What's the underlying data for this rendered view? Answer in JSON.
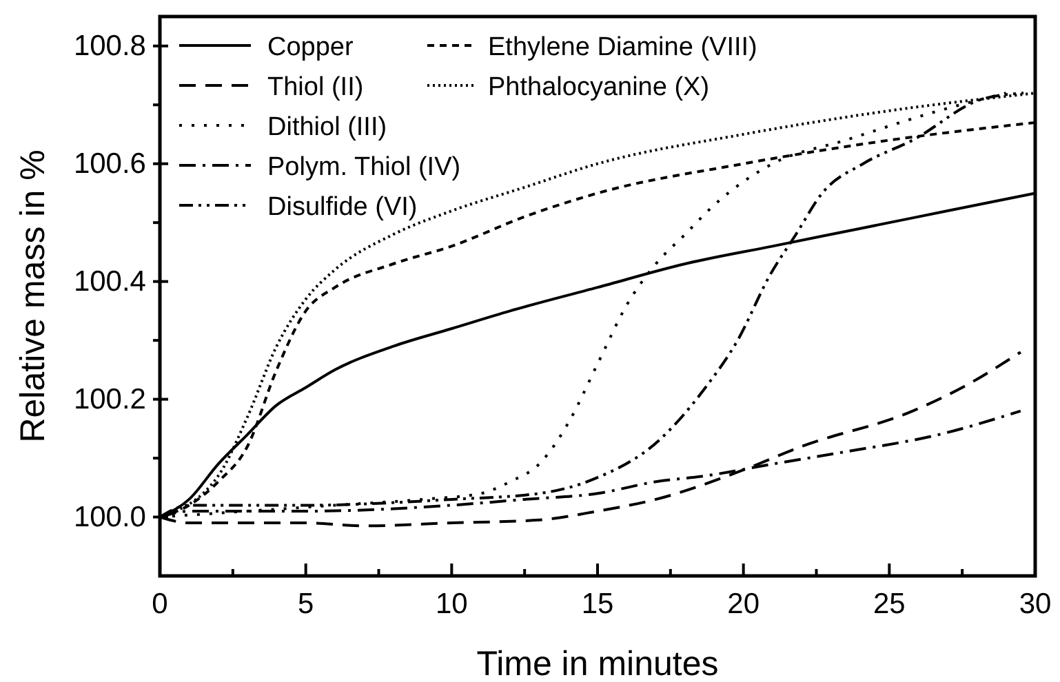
{
  "chart_data": {
    "type": "line",
    "xlabel": "Time in minutes",
    "ylabel": "Relative mass in %",
    "xlim": [
      0,
      30
    ],
    "ylim": [
      99.9,
      100.85
    ],
    "xticks": [
      0,
      {
        "value": 2.5,
        "label": null
      },
      5,
      {
        "value": 7.5,
        "label": null
      },
      10,
      {
        "value": 12.5,
        "label": null
      },
      15,
      {
        "value": 17.5,
        "label": null
      },
      20,
      {
        "value": 22.5,
        "label": null
      },
      25,
      {
        "value": 27.5,
        "label": null
      },
      30
    ],
    "yticks": [
      {
        "value": 100.0,
        "label": "100.0"
      },
      {
        "value": 100.1,
        "label": null
      },
      100.2,
      {
        "value": 100.3,
        "label": null
      },
      100.4,
      {
        "value": 100.5,
        "label": null
      },
      100.6,
      {
        "value": 100.7,
        "label": null
      },
      100.8
    ],
    "grid": false,
    "legend": "top left",
    "marker": "none",
    "series": [
      {
        "name": "Copper",
        "color": "#000000",
        "line_style": "solid",
        "x": [
          0,
          1,
          2,
          3,
          4,
          5,
          6,
          8,
          10,
          12,
          15,
          18,
          21,
          24,
          27,
          30
        ],
        "values": [
          100.0,
          100.03,
          100.09,
          100.14,
          100.19,
          100.22,
          100.25,
          100.29,
          100.32,
          100.35,
          100.39,
          100.43,
          100.46,
          100.49,
          100.52,
          100.55
        ]
      },
      {
        "name": "Thiol (II)",
        "color": "#000000",
        "line_style": "dashed",
        "x": [
          0,
          1,
          5,
          7,
          10,
          13,
          15,
          17,
          20,
          22,
          25.8,
          27.5,
          29.5
        ],
        "values": [
          100.0,
          99.99,
          99.99,
          99.985,
          99.99,
          99.995,
          100.01,
          100.03,
          100.08,
          100.12,
          100.18,
          100.22,
          100.28
        ]
      },
      {
        "name": "Dithiol (III)",
        "color": "#000000",
        "line_style": "dotted",
        "x": [
          0,
          3,
          6,
          9,
          11,
          12,
          13,
          14,
          15,
          16,
          17,
          18,
          19,
          21,
          23.5,
          26.7,
          29
        ],
        "values": [
          100.0,
          100.01,
          100.02,
          100.03,
          100.04,
          100.06,
          100.09,
          100.16,
          100.26,
          100.36,
          100.43,
          100.48,
          100.53,
          100.6,
          100.64,
          100.69,
          100.72
        ]
      },
      {
        "name": "Polym. Thiol (IV)",
        "color": "#000000",
        "line_style": "dashdot",
        "x": [
          0,
          1,
          5,
          10,
          12.5,
          15,
          17,
          18.7,
          21,
          23.4,
          26.7,
          29.5
        ],
        "values": [
          100.0,
          100.01,
          100.01,
          100.02,
          100.03,
          100.04,
          100.06,
          100.07,
          100.09,
          100.11,
          100.14,
          100.18
        ]
      },
      {
        "name": "Disulfide (VI)",
        "color": "#000000",
        "line_style": "dashdotdot",
        "x": [
          0,
          1,
          5,
          10,
          13,
          14.9,
          17.1,
          18.7,
          19.8,
          20.9,
          21.8,
          22.7,
          24.1,
          25.8,
          28.2,
          29.6
        ],
        "values": [
          100.0,
          100.02,
          100.02,
          100.03,
          100.04,
          100.065,
          100.13,
          100.22,
          100.3,
          100.41,
          100.48,
          100.55,
          100.6,
          100.64,
          100.71,
          100.72
        ]
      },
      {
        "name": "Ethylene Diamine (VIII)",
        "color": "#000000",
        "line_style": "shortdash",
        "x": [
          0,
          1,
          2,
          3,
          4,
          5,
          6,
          8,
          10,
          12.5,
          15,
          20,
          25,
          30
        ],
        "values": [
          100.0,
          100.02,
          100.06,
          100.12,
          100.25,
          100.35,
          100.39,
          100.43,
          100.46,
          100.51,
          100.55,
          100.6,
          100.64,
          100.67
        ]
      },
      {
        "name": "Phthalocyanine (X)",
        "color": "#000000",
        "line_style": "densedot",
        "x": [
          0,
          2,
          3,
          4,
          5,
          6,
          8,
          10,
          12.5,
          15,
          20,
          25,
          30
        ],
        "values": [
          100.0,
          100.07,
          100.17,
          100.29,
          100.37,
          100.42,
          100.48,
          100.52,
          100.56,
          100.6,
          100.65,
          100.69,
          100.72
        ]
      }
    ]
  }
}
